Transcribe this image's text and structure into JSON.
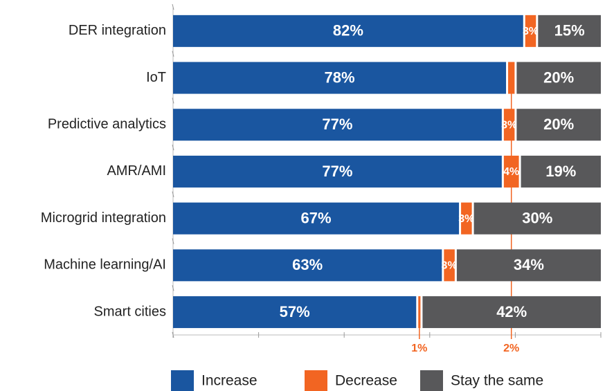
{
  "chart_data": {
    "type": "stacked-bar-horizontal",
    "categories": [
      "DER integration",
      "IoT",
      "Predictive analytics",
      "AMR/AMI",
      "Microgrid integration",
      "Machine learning/AI",
      "Smart cities"
    ],
    "series": [
      {
        "name": "Increase",
        "color": "#1a56a0",
        "values": [
          82,
          78,
          77,
          77,
          67,
          63,
          57
        ],
        "value_labels": [
          "82%",
          "78%",
          "77%",
          "77%",
          "67%",
          "63%",
          "57%"
        ]
      },
      {
        "name": "Decrease",
        "color": "#f26522",
        "values": [
          3,
          2,
          3,
          4,
          3,
          3,
          1
        ],
        "value_labels": [
          "3%",
          "2%",
          "3%",
          "4%",
          "3%",
          "3%",
          "1%"
        ]
      },
      {
        "name": "Stay the same",
        "color": "#58585a",
        "values": [
          15,
          20,
          20,
          19,
          30,
          34,
          42
        ],
        "value_labels": [
          "15%",
          "20%",
          "20%",
          "19%",
          "30%",
          "34%",
          "42%"
        ]
      }
    ],
    "xlim": [
      0,
      100
    ],
    "xticks": [
      0,
      20,
      40,
      60,
      80,
      100
    ]
  }
}
